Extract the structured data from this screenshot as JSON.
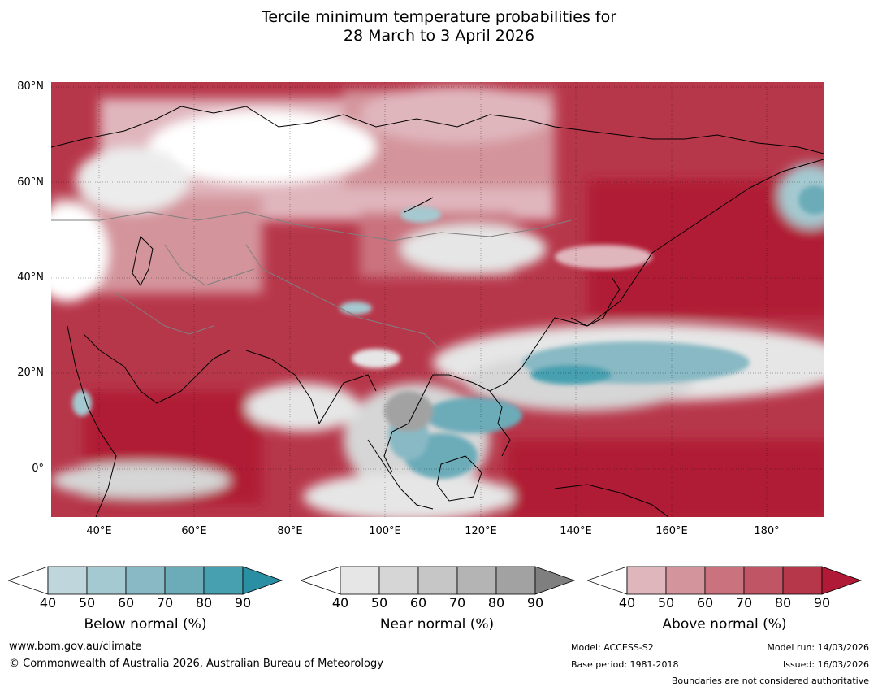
{
  "title": {
    "line1": "Tercile minimum temperature probabilities for",
    "line2": "28 March to 3 April 2026"
  },
  "axes": {
    "lat_labels": [
      "80°N",
      "60°N",
      "40°N",
      "20°N",
      "0°"
    ],
    "lon_labels": [
      "40°E",
      "60°E",
      "80°E",
      "100°E",
      "120°E",
      "140°E",
      "160°E",
      "180°"
    ]
  },
  "legend": {
    "ticks": [
      "40",
      "50",
      "60",
      "70",
      "80",
      "90"
    ],
    "below": {
      "label": "Below normal (%)",
      "colors": [
        "#c0d6dd",
        "#a5c9d0",
        "#88b9c4",
        "#6cacb9",
        "#46a0b0",
        "#2b8fa4"
      ]
    },
    "near": {
      "label": "Near normal (%)",
      "colors": [
        "#e6e6e6",
        "#d6d6d6",
        "#c6c6c6",
        "#b4b4b4",
        "#a2a2a2",
        "#7f7f7f"
      ]
    },
    "above": {
      "label": "Above normal (%)",
      "colors": [
        "#e0b6bd",
        "#d4949c",
        "#ca737f",
        "#c05565",
        "#b7374a",
        "#b01a36"
      ]
    }
  },
  "footer": {
    "website": "www.bom.gov.au/climate",
    "copyright": "© Commonwealth of Australia 2026, Australian Bureau of Meteorology",
    "model": "Model: ACCESS-S2",
    "base_period": "Base period: 1981-2018",
    "model_run": "Model run: 14/03/2026",
    "issued": "Issued: 16/03/2026",
    "disclaimer": "Boundaries are not considered authoritative"
  }
}
